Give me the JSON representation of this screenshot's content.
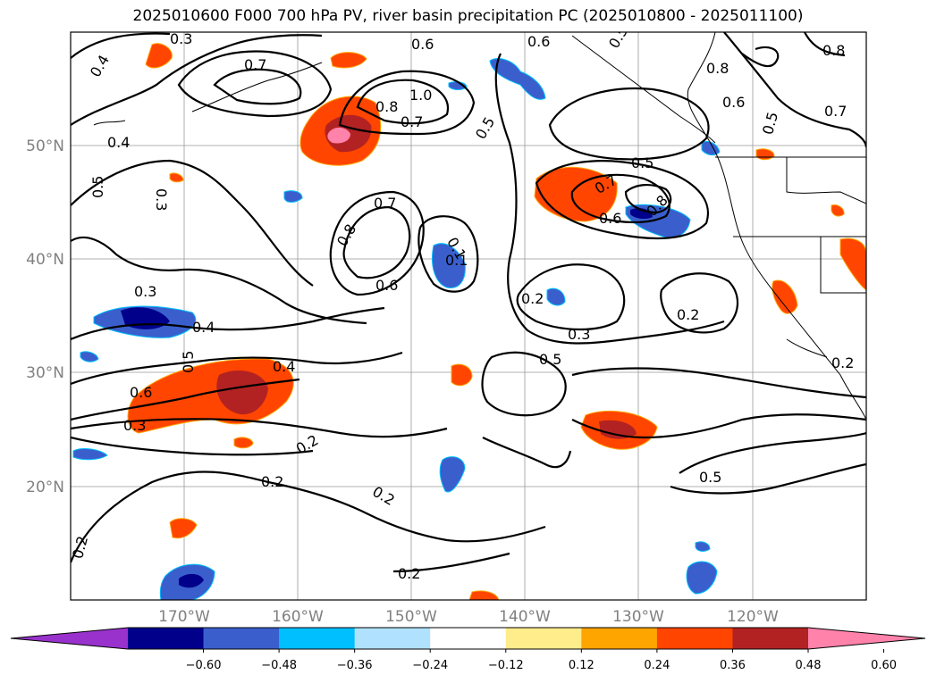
{
  "title": "2025010600 F000 700 hPa PV, river basin precipitation PC (2025010800 - 2025011100)",
  "latitude_labels": [
    "50°N",
    "40°N",
    "30°N",
    "20°N"
  ],
  "longitude_labels": [
    "170°W",
    "160°W",
    "150°W",
    "140°W",
    "130°W",
    "120°W"
  ],
  "colorbar": {
    "ticks": [
      "−0.60",
      "−0.48",
      "−0.36",
      "−0.24",
      "−0.12",
      "0.12",
      "0.24",
      "0.36",
      "0.48",
      "0.60"
    ],
    "colors": [
      "#9932cc",
      "#00008b",
      "#3a5fcd",
      "#00bfff",
      "#b0e2ff",
      "#ffffff",
      "#ffec8b",
      "#ffa500",
      "#ff4500",
      "#b22222",
      "#ff82ab"
    ]
  },
  "pv_contour_labels": [
    "0.3",
    "0.4",
    "0.5",
    "0.6",
    "0.7",
    "0.8",
    "1.0",
    "0.2"
  ],
  "pv_labels_shown": [
    "0.3",
    "0.4",
    "0.7",
    "0.6",
    "1.0",
    "0.8",
    "0.7",
    "0.5",
    "0.6",
    "0.8",
    "0.6",
    "0.5",
    "0.8",
    "0.7",
    "0.4",
    "0.5",
    "0.3",
    "0.7",
    "0.8",
    "0.6",
    "0.1",
    "0.1",
    "0.5",
    "0.8",
    "0.6",
    "0.7",
    "0.2",
    "0.2",
    "0.3",
    "0.5",
    "0.3",
    "0.4",
    "0.6",
    "0.4",
    "0.3",
    "0.5",
    "0.2",
    "0.2",
    "0.2",
    "0.2",
    "0.2",
    "0.5",
    "0.2"
  ]
}
